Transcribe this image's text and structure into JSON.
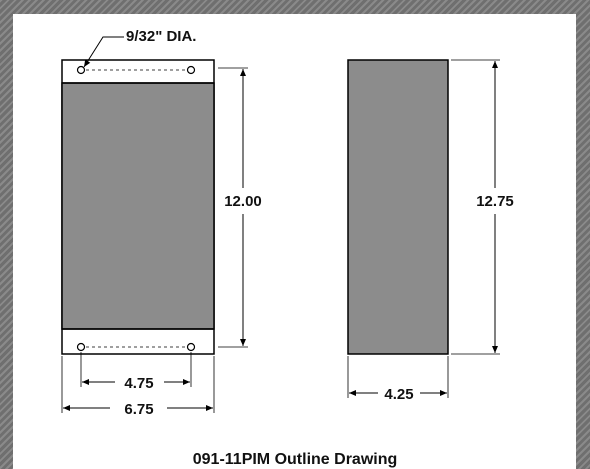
{
  "hole_label": "9/32\" DIA.",
  "front_height": "12.00",
  "side_height": "12.75",
  "hole_spacing": "4.75",
  "front_width": "6.75",
  "side_width": "4.25",
  "caption": "091-11PIM Outline Drawing",
  "colors": {
    "panel_fill": "#8c8c8c",
    "line": "#000000",
    "background": "#ffffff",
    "frame": "#7a7a7a"
  }
}
